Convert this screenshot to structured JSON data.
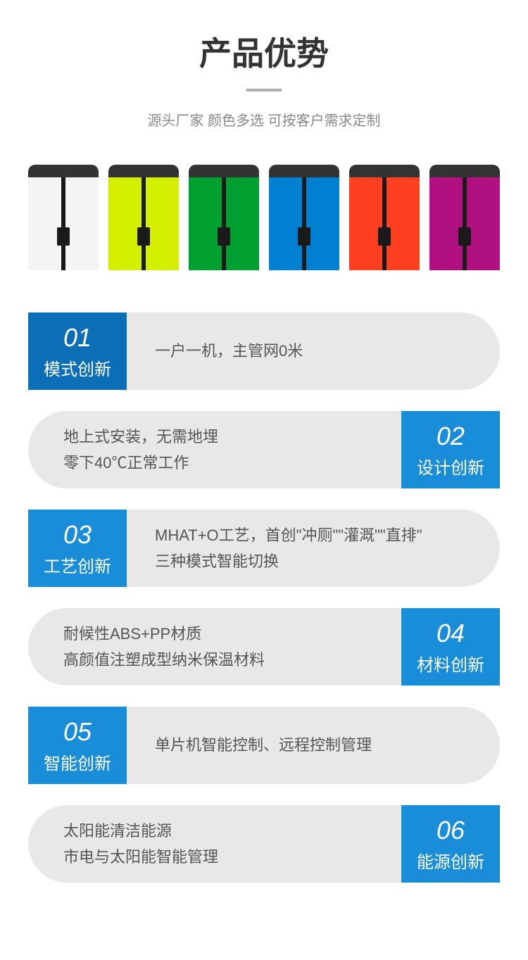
{
  "header": {
    "title": "产品优势",
    "subtitle": "源头厂家 颜色多选 可按客户需求定制"
  },
  "products": {
    "colors": [
      "#f5f5f5",
      "#d4f000",
      "#00a030",
      "#0080d0",
      "#ff4020",
      "#b01080"
    ]
  },
  "features": [
    {
      "number": "01",
      "label": "模式创新",
      "text": "一户一机，主管网0米",
      "side": "left",
      "badge_color": "#0d6eb8"
    },
    {
      "number": "02",
      "label": "设计创新",
      "text": "地上式安装，无需地埋\n零下40℃正常工作",
      "side": "right",
      "badge_color": "#1a8dd8"
    },
    {
      "number": "03",
      "label": "工艺创新",
      "text": "MHAT+O工艺，首创\"冲厕\"\"灌溉\"\"直排\"\n三种模式智能切换",
      "side": "left",
      "badge_color": "#1a8dd8"
    },
    {
      "number": "04",
      "label": "材料创新",
      "text": "耐候性ABS+PP材质\n高颜值注塑成型纳米保温材料",
      "side": "right",
      "badge_color": "#1a8dd8"
    },
    {
      "number": "05",
      "label": "智能创新",
      "text": "单片机智能控制、远程控制管理",
      "side": "left",
      "badge_color": "#1a8dd8"
    },
    {
      "number": "06",
      "label": "能源创新",
      "text": "太阳能清洁能源\n市电与太阳能智能管理",
      "side": "right",
      "badge_color": "#1a8dd8"
    }
  ],
  "styling": {
    "title_fontsize": 46,
    "subtitle_fontsize": 20,
    "badge_number_fontsize": 36,
    "badge_label_fontsize": 24,
    "content_fontsize": 22,
    "content_bg": "#e8e8e8",
    "title_color": "#333333",
    "subtitle_color": "#888888",
    "content_text_color": "#555555",
    "divider_color": "#b0b0b0"
  }
}
